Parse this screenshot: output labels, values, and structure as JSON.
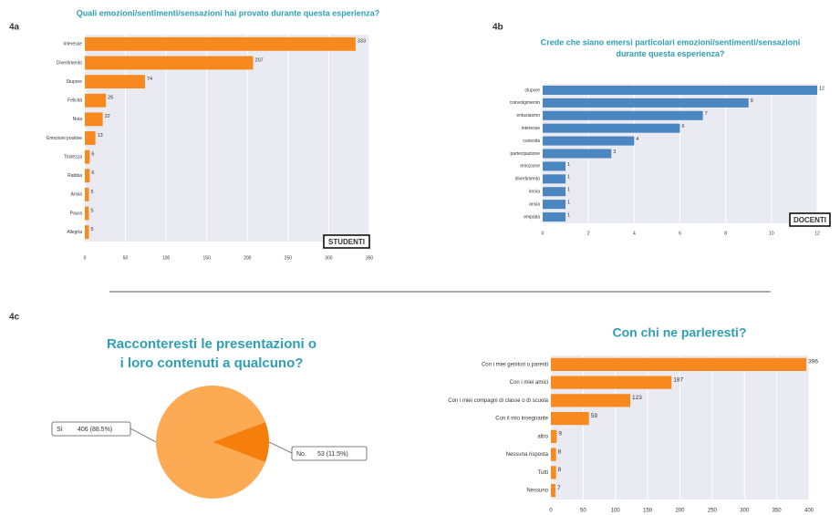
{
  "figure_labels": [
    "4a",
    "4b",
    "4c"
  ],
  "chart_data": [
    {
      "type": "hbar",
      "title": [
        "Quali emozioni/sentimenti/sensazioni hai provato durante questa esperienza?"
      ],
      "categories": [
        "Interesse",
        "Divertimento",
        "Stupore",
        "Felicità",
        "Noia",
        "Emozioni positive",
        "Tristezza",
        "Rabbia",
        "Ansia",
        "Paura",
        "Allegria"
      ],
      "values": [
        333,
        207,
        74,
        26,
        22,
        13,
        6,
        6,
        5,
        5,
        5
      ],
      "color": "#f7891f",
      "xlim": [
        0,
        350
      ],
      "xticks": [
        0,
        50,
        100,
        150,
        200,
        250,
        300,
        350
      ],
      "grid": true,
      "badge": "STUDENTI"
    },
    {
      "type": "hbar",
      "title": [
        "Crede che siano emersi particolari emozioni/sentimenti/sensazioni",
        "durante questa esperienza?"
      ],
      "categories": [
        "stupore",
        "coinvolgimento",
        "entusiasmo",
        "interesse",
        "curiosità",
        "partecipazione",
        "emozione",
        "divertimento",
        "ironia",
        "ansia",
        "empatia"
      ],
      "values": [
        12,
        9,
        7,
        6,
        4,
        3,
        1,
        1,
        1,
        1,
        1
      ],
      "color": "#4a86c0",
      "xlim": [
        0,
        12
      ],
      "xticks": [
        0,
        2,
        4,
        6,
        8,
        10,
        12
      ],
      "grid": true,
      "badge": "DOCENTI"
    },
    {
      "type": "pie",
      "title": [
        "Racconteresti le presentazioni o",
        "i loro contenuti a qualcuno?"
      ],
      "categories": [
        "Sì",
        "No."
      ],
      "values": [
        406,
        53
      ],
      "value_labels": [
        "406 (88.5%)",
        "53 (11.5%)"
      ],
      "colors": [
        "#fdaa55",
        "#f57f0a"
      ]
    },
    {
      "type": "hbar",
      "title": [
        "Con chi ne parleresti?"
      ],
      "categories": [
        "Con i miei genitori o parenti",
        "Con i miei amici",
        "Con i miei compagni di classe o di scuola",
        "Con il mio insegnante",
        "altro",
        "Nessuna risposta",
        "Tutti",
        "Nessuno"
      ],
      "values": [
        396,
        187,
        123,
        59,
        9,
        8,
        8,
        7
      ],
      "color": "#f7891f",
      "xlim": [
        0,
        400
      ],
      "xticks": [
        0,
        50,
        100,
        150,
        200,
        250,
        300,
        350,
        400
      ],
      "grid": true
    }
  ]
}
